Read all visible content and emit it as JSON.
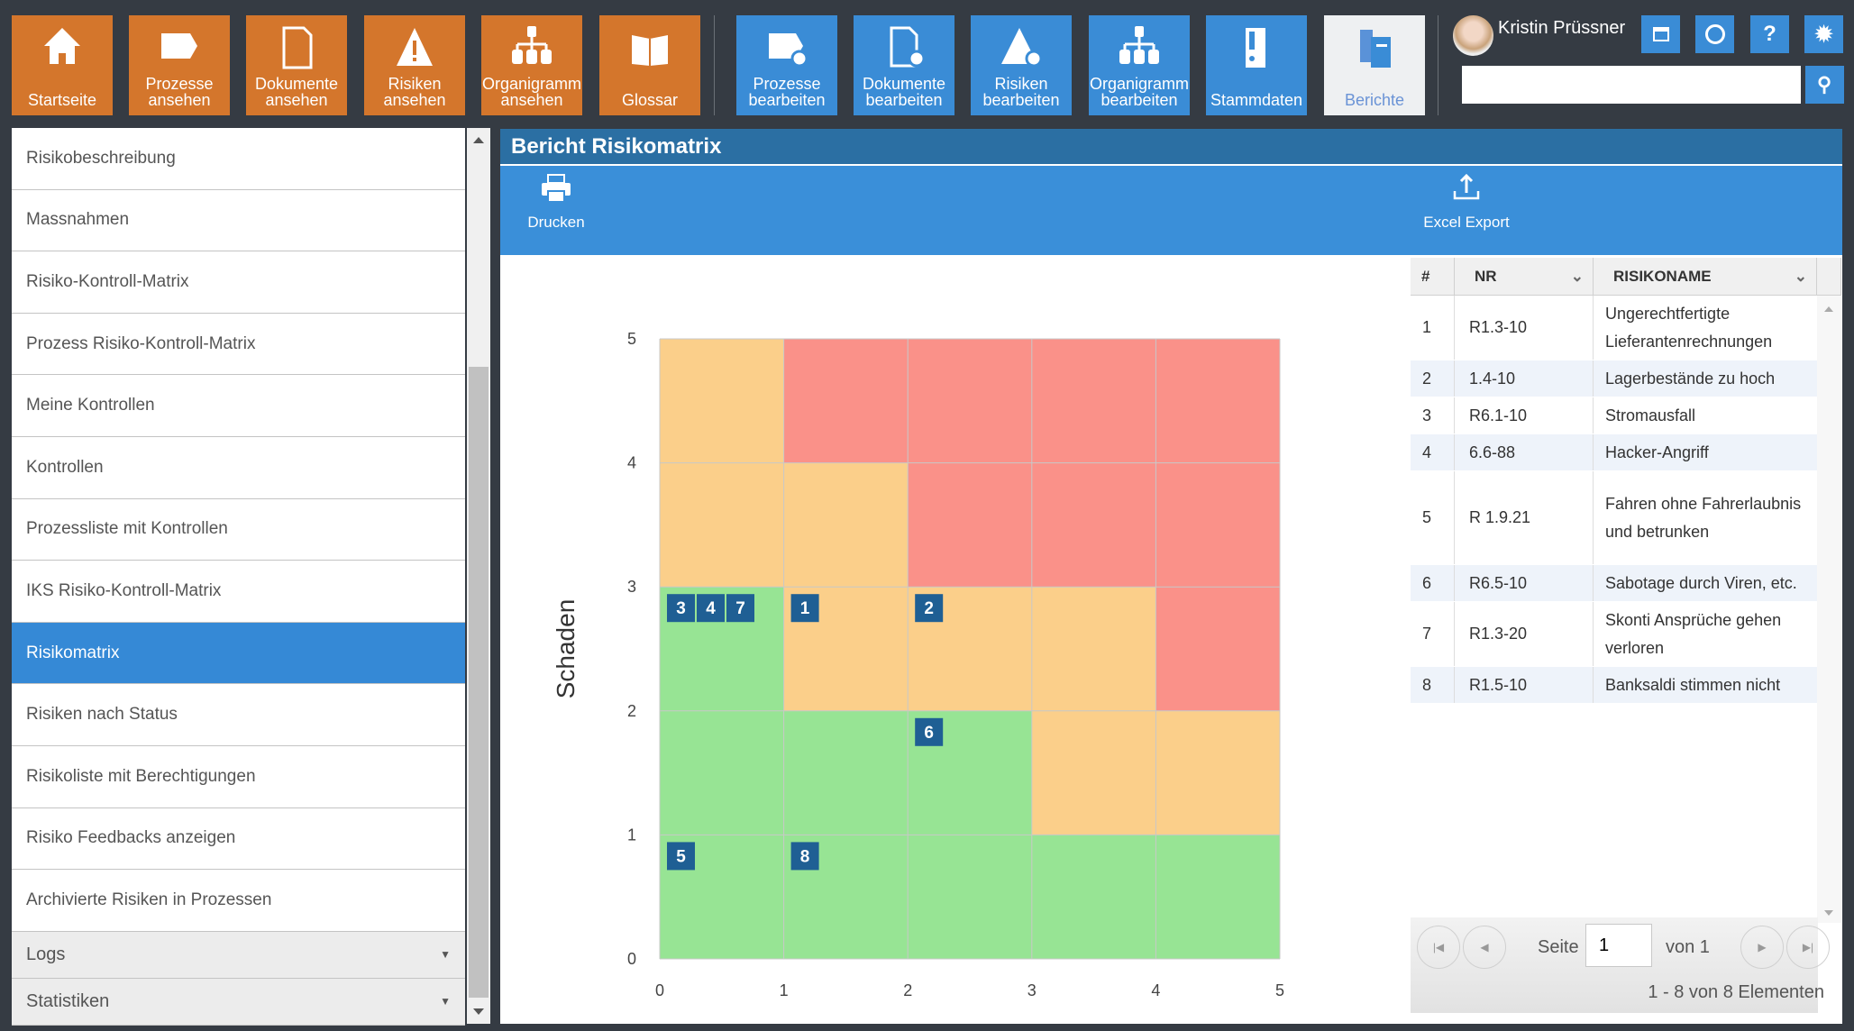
{
  "nav": {
    "view_tiles": [
      {
        "label": "Startseite",
        "icon": "home-icon"
      },
      {
        "label": "Prozesse ansehen",
        "icon": "process-icon"
      },
      {
        "label": "Dokumente ansehen",
        "icon": "document-icon"
      },
      {
        "label": "Risiken ansehen",
        "icon": "warning-icon"
      },
      {
        "label": "Organigramm ansehen",
        "icon": "org-chart-icon"
      },
      {
        "label": "Glossar",
        "icon": "book-icon"
      }
    ],
    "edit_tiles": [
      {
        "label": "Prozesse bearbeiten",
        "icon": "process-gear-icon"
      },
      {
        "label": "Dokumente bearbeiten",
        "icon": "document-gear-icon"
      },
      {
        "label": "Risiken bearbeiten",
        "icon": "warning-gear-icon"
      },
      {
        "label": "Organigramm bearbeiten",
        "icon": "org-chart-icon"
      },
      {
        "label": "Stammdaten",
        "icon": "binder-icon"
      },
      {
        "label": "Berichte",
        "icon": "reports-icon",
        "active": true
      }
    ],
    "colors": {
      "orange": "#d4762c",
      "blue": "#3a8cd6"
    }
  },
  "user": {
    "name": "Kristin Prüssner"
  },
  "search": {
    "value": "",
    "placeholder": ""
  },
  "sidebar": {
    "items": [
      "Risikobeschreibung",
      "Massnahmen",
      "Risiko-Kontroll-Matrix",
      "Prozess Risiko-Kontroll-Matrix",
      "Meine Kontrollen",
      "Kontrollen",
      "Prozessliste mit Kontrollen",
      "IKS Risiko-Kontroll-Matrix",
      "Risikomatrix",
      "Risiken nach Status",
      "Risikoliste mit Berechtigungen",
      "Risiko Feedbacks anzeigen",
      "Archivierte Risiken in Prozessen"
    ],
    "selected": "Risikomatrix",
    "groups": [
      "Logs",
      "Statistiken"
    ]
  },
  "report": {
    "title": "Bericht Risikomatrix",
    "print_label": "Drucken",
    "export_label": "Excel Export"
  },
  "chart_data": {
    "type": "heatmap",
    "ylabel": "Schaden",
    "xlabel": "",
    "xlim": [
      0,
      5
    ],
    "ylim": [
      0,
      5
    ],
    "xticks": [
      "0",
      "1",
      "2",
      "3",
      "4",
      "5"
    ],
    "yticks": [
      "0",
      "1",
      "2",
      "3",
      "4",
      "5"
    ],
    "grid": true,
    "cells_top_to_bottom": [
      [
        "orange",
        "red",
        "red",
        "red",
        "red"
      ],
      [
        "orange",
        "orange",
        "red",
        "red",
        "red"
      ],
      [
        "green",
        "orange",
        "orange",
        "orange",
        "red"
      ],
      [
        "green",
        "green",
        "green",
        "orange",
        "orange"
      ],
      [
        "green",
        "green",
        "green",
        "green",
        "green"
      ]
    ],
    "colors": {
      "green": "#97e494",
      "orange": "#fbcf8a",
      "red": "#fa9189",
      "marker": "#1f5f94"
    },
    "points": [
      {
        "label": "3",
        "x": 0,
        "y": 2
      },
      {
        "label": "4",
        "x": 0,
        "y": 2
      },
      {
        "label": "7",
        "x": 0,
        "y": 2
      },
      {
        "label": "1",
        "x": 1,
        "y": 2
      },
      {
        "label": "2",
        "x": 2,
        "y": 2
      },
      {
        "label": "6",
        "x": 2,
        "y": 1
      },
      {
        "label": "5",
        "x": 0,
        "y": 0
      },
      {
        "label": "8",
        "x": 1,
        "y": 0
      }
    ]
  },
  "table": {
    "headers": [
      "#",
      "NR",
      "RISIKONAME"
    ],
    "rows": [
      {
        "n": "1",
        "nr": "R1.3-10",
        "name": "Ungerechtfertigte Lieferantenrechnungen"
      },
      {
        "n": "2",
        "nr": "1.4-10",
        "name": "Lagerbestände zu hoch"
      },
      {
        "n": "3",
        "nr": "R6.1-10",
        "name": "Stromausfall"
      },
      {
        "n": "4",
        "nr": "6.6-88",
        "name": "Hacker-Angriff"
      },
      {
        "n": "5",
        "nr": "R 1.9.21",
        "name": "Fahren ohne Fahrerlaubnis und betrunken"
      },
      {
        "n": "6",
        "nr": "R6.5-10",
        "name": "Sabotage durch Viren, etc."
      },
      {
        "n": "7",
        "nr": "R1.3-20",
        "name": "Skonti Ansprüche gehen verloren"
      },
      {
        "n": "8",
        "nr": "R1.5-10",
        "name": "Banksaldi stimmen nicht"
      }
    ]
  },
  "pager": {
    "page_label": "Seite",
    "page": "1",
    "of_label": "von 1",
    "summary": "1 - 8 von 8 Elementen"
  }
}
